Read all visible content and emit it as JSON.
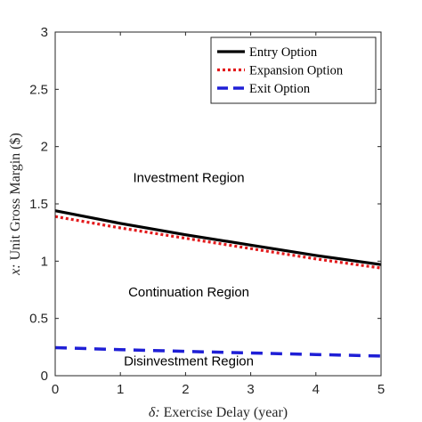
{
  "chart_data": {
    "type": "line",
    "title": "",
    "xlabel_symbol": "δ:",
    "xlabel": "Exercise Delay (year)",
    "ylabel_symbol": "x:",
    "ylabel": "Unit Gross Margin ($)",
    "xlim": [
      0,
      5
    ],
    "ylim": [
      0,
      3
    ],
    "xticks": [
      0,
      1,
      2,
      3,
      4,
      5
    ],
    "yticks": [
      0,
      0.5,
      1,
      1.5,
      2,
      2.5,
      3
    ],
    "xtick_labels": [
      "0",
      "1",
      "2",
      "3",
      "4",
      "5"
    ],
    "ytick_labels": [
      "0",
      "0.5",
      "1",
      "1.5",
      "2",
      "2.5",
      "3"
    ],
    "grid": false,
    "legend_position": "top-right",
    "x": [
      0,
      1,
      2,
      3,
      4,
      5
    ],
    "series": [
      {
        "name": "Entry Option",
        "values": [
          1.44,
          1.33,
          1.23,
          1.14,
          1.05,
          0.97
        ],
        "color": "#000000",
        "style": "solid"
      },
      {
        "name": "Expansion Option",
        "values": [
          1.39,
          1.29,
          1.2,
          1.11,
          1.02,
          0.94
        ],
        "color": "#e31a1c",
        "style": "dotted"
      },
      {
        "name": "Exit Option",
        "values": [
          0.245,
          0.228,
          0.212,
          0.198,
          0.185,
          0.172
        ],
        "color": "#1f1fd6",
        "style": "dashed"
      }
    ],
    "annotations": [
      {
        "text": "Investment Region",
        "x": 2.05,
        "y": 1.69
      },
      {
        "text": "Continuation Region",
        "x": 2.05,
        "y": 0.69
      },
      {
        "text": "Disinvestment Region",
        "x": 2.05,
        "y": 0.09
      }
    ]
  }
}
